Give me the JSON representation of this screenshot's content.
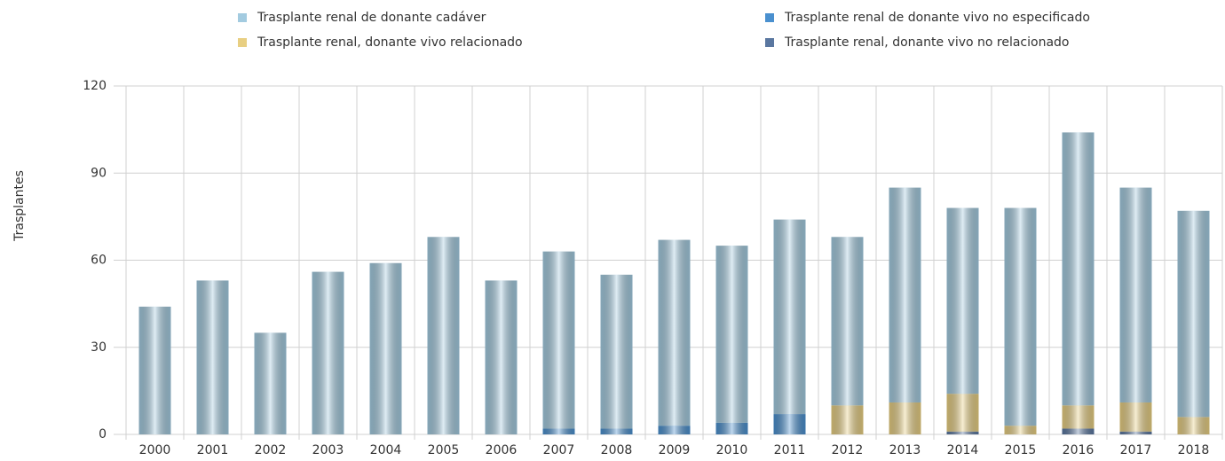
{
  "chart_data": {
    "type": "bar",
    "stacked": true,
    "y_label": "Trasplantes",
    "categories": [
      "2000",
      "2001",
      "2002",
      "2003",
      "2004",
      "2005",
      "2006",
      "2007",
      "2008",
      "2009",
      "2010",
      "2011",
      "2012",
      "2013",
      "2014",
      "2015",
      "2016",
      "2017",
      "2018"
    ],
    "series": [
      {
        "name": "Trasplante renal de donante cadáver",
        "color": "#a3cbe0",
        "values": [
          44,
          53,
          35,
          56,
          59,
          68,
          53,
          61,
          53,
          64,
          61,
          67,
          58,
          74,
          64,
          75,
          94,
          74,
          71
        ]
      },
      {
        "name": "Trasplante renal de donante vivo no especificado",
        "color": "#4a90cf",
        "values": [
          0,
          0,
          0,
          0,
          0,
          0,
          0,
          2,
          2,
          3,
          4,
          7,
          0,
          0,
          0,
          0,
          0,
          0,
          0
        ]
      },
      {
        "name": "Trasplante renal, donante vivo relacionado",
        "color": "#e8cf82",
        "values": [
          0,
          0,
          0,
          0,
          0,
          0,
          0,
          0,
          0,
          0,
          0,
          0,
          10,
          11,
          13,
          3,
          8,
          10,
          6
        ]
      },
      {
        "name": "Trasplante renal, donante vivo no relacionado",
        "color": "#5a77a0",
        "values": [
          0,
          0,
          0,
          0,
          0,
          0,
          0,
          0,
          0,
          0,
          0,
          0,
          0,
          0,
          1,
          0,
          2,
          1,
          0
        ]
      }
    ],
    "ylim": [
      0,
      120
    ],
    "yticks": [
      0,
      30,
      60,
      90,
      120
    ],
    "grid": true
  }
}
